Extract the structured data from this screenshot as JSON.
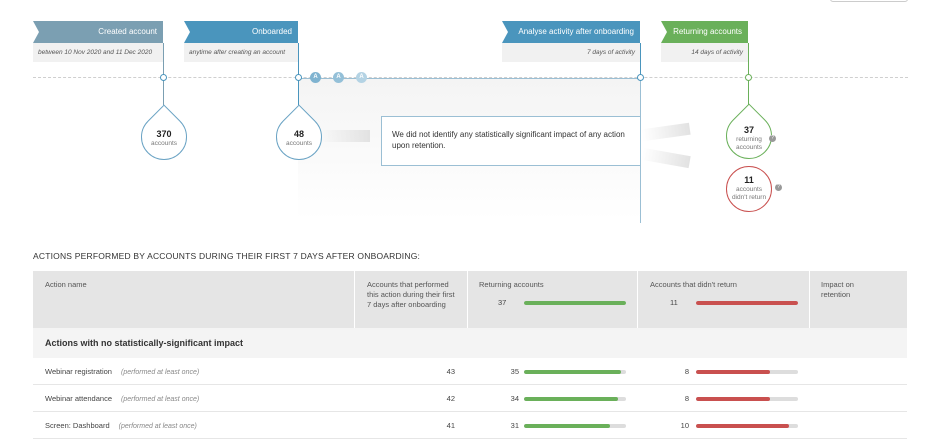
{
  "stages": [
    {
      "title": "Created account",
      "subtitle": "between 10 Nov 2020 and 11 Dec 2020"
    },
    {
      "title": "Onboarded",
      "subtitle": "anytime after creating an account"
    },
    {
      "title": "Analyse activity after onboarding",
      "subtitle": "7 days of activity"
    },
    {
      "title": "Returning accounts",
      "subtitle": "14 days of activity"
    }
  ],
  "action_badges": [
    "A",
    "A",
    "A"
  ],
  "drops": {
    "created": {
      "value": "370",
      "label": "accounts"
    },
    "onboarded": {
      "value": "48",
      "label": "accounts"
    },
    "returning": {
      "value": "37",
      "label1": "returning",
      "label2": "accounts"
    },
    "not_returning": {
      "value": "11",
      "label1": "accounts",
      "label2": "didn't return"
    }
  },
  "notice": "We did not identify any statistically significant impact of any action upon retention.",
  "section_title": "ACTIONS PERFORMED BY ACCOUNTS DURING THEIR FIRST 7 DAYS AFTER ONBOARDING:",
  "table": {
    "headers": {
      "action": "Action name",
      "performed": "Accounts that performed this action during their first 7 days after onboarding",
      "returning": "Returning accounts",
      "not_returning": "Accounts that didn't return",
      "impact": "Impact on retention"
    },
    "header_totals": {
      "returning": "37",
      "not_returning": "11"
    },
    "group_title": "Actions with no statistically-significant impact",
    "rows": [
      {
        "name": "Webinar registration",
        "qualifier": "(performed at least once)",
        "performed": "43",
        "returning": "35",
        "returning_frac": 0.95,
        "not_returning": "8",
        "not_returning_frac": 0.73
      },
      {
        "name": "Webinar attendance",
        "qualifier": "(performed at least once)",
        "performed": "42",
        "returning": "34",
        "returning_frac": 0.92,
        "not_returning": "8",
        "not_returning_frac": 0.73
      },
      {
        "name": "Screen: Dashboard",
        "qualifier": "(performed at least once)",
        "performed": "41",
        "returning": "31",
        "returning_frac": 0.84,
        "not_returning": "10",
        "not_returning_frac": 0.91
      }
    ]
  },
  "colors": {
    "blue": "#4a95bd",
    "green": "#6ab05a",
    "red": "#c9504f"
  }
}
